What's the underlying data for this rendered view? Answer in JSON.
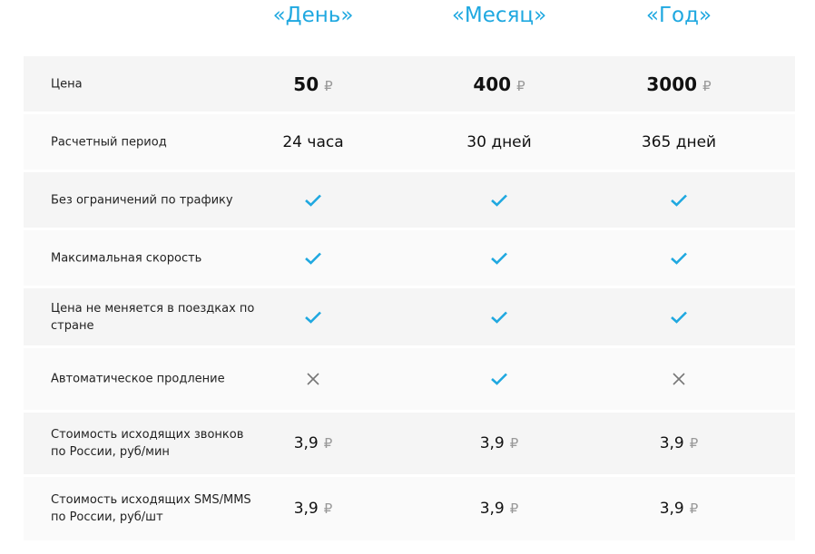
{
  "plans": [
    "«День»",
    "«Месяц»",
    "«Год»"
  ],
  "currency": "₽",
  "colors": {
    "accent": "#1fa8e0",
    "cross": "#777777"
  },
  "rows": [
    {
      "label": "Цена",
      "type": "price",
      "values": [
        "50",
        "400",
        "3000"
      ]
    },
    {
      "label": "Расчетный период",
      "type": "text",
      "values": [
        "24 часа",
        "30 дней",
        "365 дней"
      ]
    },
    {
      "label": "Без ограничений по трафику",
      "type": "bool",
      "values": [
        true,
        true,
        true
      ]
    },
    {
      "label": "Максимальная скорость",
      "type": "bool",
      "values": [
        true,
        true,
        true
      ]
    },
    {
      "label": "Цена не меняется в поездках по стране",
      "type": "bool",
      "values": [
        true,
        true,
        true
      ]
    },
    {
      "label": "Автоматическое продление",
      "type": "bool",
      "values": [
        false,
        true,
        false
      ]
    },
    {
      "label": "Стоимость исходящих звонков по России, руб/мин",
      "type": "money",
      "values": [
        "3,9",
        "3,9",
        "3,9"
      ]
    },
    {
      "label": "Стоимость исходящих SMS/MMS по России, руб/шт",
      "type": "money",
      "values": [
        "3,9",
        "3,9",
        "3,9"
      ]
    }
  ]
}
